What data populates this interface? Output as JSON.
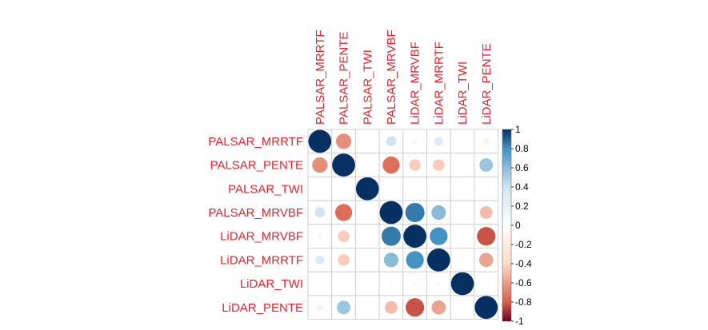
{
  "chart_data": {
    "type": "heatmap",
    "style": "circle correlation matrix",
    "variables": [
      "PALSAR_MRRTF",
      "PALSAR_PENTE",
      "PALSAR_TWI",
      "PALSAR_MRVBF",
      "LiDAR_MRVBF",
      "LiDAR_MRRTF",
      "LiDAR_TWI",
      "LiDAR_PENTE"
    ],
    "matrix": [
      [
        1.0,
        -0.45,
        0.0,
        0.2,
        0.05,
        0.15,
        0.0,
        -0.08
      ],
      [
        -0.45,
        1.0,
        0.0,
        -0.55,
        -0.25,
        -0.25,
        0.0,
        0.35
      ],
      [
        0.0,
        0.0,
        1.0,
        0.0,
        0.0,
        0.0,
        0.0,
        0.0
      ],
      [
        0.2,
        -0.55,
        0.0,
        1.0,
        0.7,
        0.4,
        0.03,
        -0.3
      ],
      [
        0.05,
        -0.25,
        0.0,
        0.7,
        1.0,
        0.6,
        0.03,
        -0.65
      ],
      [
        0.15,
        -0.25,
        0.0,
        0.4,
        0.6,
        1.0,
        0.03,
        -0.38
      ],
      [
        0.0,
        0.0,
        0.0,
        0.03,
        0.03,
        0.03,
        1.0,
        0.0
      ],
      [
        -0.08,
        0.35,
        0.0,
        -0.3,
        -0.65,
        -0.38,
        0.0,
        1.0
      ]
    ],
    "colorbar": {
      "range": [
        -1,
        1
      ],
      "ticks": [
        "1",
        "0.8",
        "0.6",
        "0.4",
        "0.2",
        "0",
        "-0.2",
        "-0.4",
        "-0.6",
        "-0.8",
        "-1"
      ],
      "colors": {
        "neg_strong": "#67001f",
        "neg_mid": "#d6604d",
        "neg_light": "#fddbc7",
        "zero": "#ffffff",
        "pos_light": "#d1e5f0",
        "pos_mid": "#4393c3",
        "pos_strong": "#053061"
      }
    },
    "label_color": "#e8232b",
    "grid": true
  }
}
